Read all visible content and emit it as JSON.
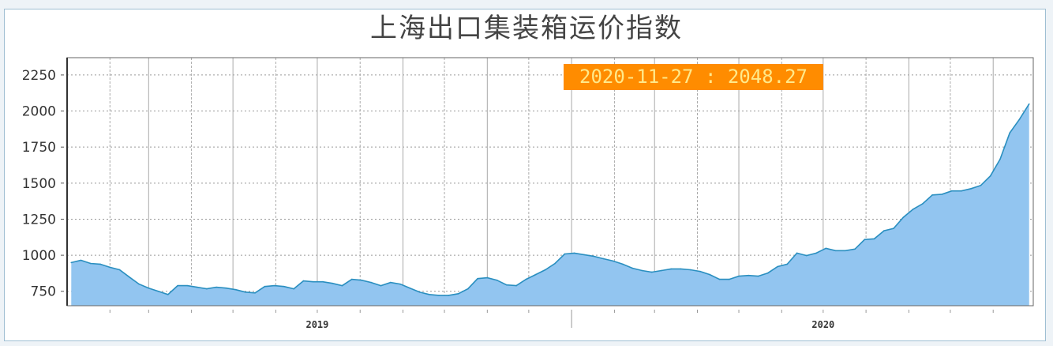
{
  "chart_data": {
    "type": "area",
    "title": "上海出口集装箱运价指数",
    "xlabel": "",
    "ylabel": "",
    "ylim": [
      650,
      2370
    ],
    "xlim": [
      "2019-01-01",
      "2020-11-30"
    ],
    "yticks": [
      750,
      1000,
      1250,
      1500,
      1750,
      2000,
      2250
    ],
    "xtick_labels": [
      {
        "label": "2019",
        "at": "2019-07-01"
      },
      {
        "label": "2020",
        "at": "2020-07-01"
      }
    ],
    "grid": true,
    "fill_color": "#92c5f0",
    "line_color": "#2a8fc0",
    "annotation": {
      "text": "2020-11-27 : 2048.27",
      "background": "#ff8c00",
      "color": "#ffe98a"
    },
    "x": [
      "2019-01-04",
      "2019-01-11",
      "2019-01-18",
      "2019-01-25",
      "2019-02-01",
      "2019-02-08",
      "2019-02-15",
      "2019-02-22",
      "2019-03-01",
      "2019-03-08",
      "2019-03-15",
      "2019-03-22",
      "2019-03-29",
      "2019-04-05",
      "2019-04-12",
      "2019-04-19",
      "2019-04-26",
      "2019-05-03",
      "2019-05-10",
      "2019-05-17",
      "2019-05-24",
      "2019-05-31",
      "2019-06-07",
      "2019-06-14",
      "2019-06-21",
      "2019-06-28",
      "2019-07-05",
      "2019-07-12",
      "2019-07-19",
      "2019-07-26",
      "2019-08-02",
      "2019-08-09",
      "2019-08-16",
      "2019-08-23",
      "2019-08-30",
      "2019-09-06",
      "2019-09-13",
      "2019-09-20",
      "2019-09-27",
      "2019-10-04",
      "2019-10-11",
      "2019-10-18",
      "2019-10-25",
      "2019-11-01",
      "2019-11-08",
      "2019-11-15",
      "2019-11-22",
      "2019-11-29",
      "2019-12-06",
      "2019-12-13",
      "2019-12-20",
      "2019-12-27",
      "2020-01-03",
      "2020-01-10",
      "2020-01-17",
      "2020-01-24",
      "2020-01-31",
      "2020-02-07",
      "2020-02-14",
      "2020-02-21",
      "2020-02-28",
      "2020-03-06",
      "2020-03-13",
      "2020-03-20",
      "2020-03-27",
      "2020-04-03",
      "2020-04-10",
      "2020-04-17",
      "2020-04-24",
      "2020-05-01",
      "2020-05-08",
      "2020-05-15",
      "2020-05-22",
      "2020-05-29",
      "2020-06-05",
      "2020-06-12",
      "2020-06-19",
      "2020-06-26",
      "2020-07-03",
      "2020-07-10",
      "2020-07-17",
      "2020-07-24",
      "2020-07-31",
      "2020-08-07",
      "2020-08-14",
      "2020-08-21",
      "2020-08-28",
      "2020-09-04",
      "2020-09-11",
      "2020-09-18",
      "2020-09-25",
      "2020-10-02",
      "2020-10-09",
      "2020-10-16",
      "2020-10-23",
      "2020-10-30",
      "2020-11-06",
      "2020-11-13",
      "2020-11-20",
      "2020-11-27"
    ],
    "values": [
      949,
      965,
      943,
      938,
      916,
      899,
      849,
      800,
      772,
      750,
      728,
      789,
      789,
      778,
      767,
      778,
      772,
      761,
      744,
      739,
      783,
      789,
      783,
      767,
      822,
      816,
      816,
      805,
      789,
      833,
      827,
      811,
      789,
      811,
      800,
      772,
      744,
      728,
      722,
      722,
      733,
      767,
      838,
      844,
      827,
      794,
      789,
      833,
      866,
      899,
      943,
      1009,
      1015,
      1004,
      993,
      976,
      960,
      938,
      910,
      894,
      883,
      894,
      905,
      905,
      899,
      888,
      866,
      833,
      833,
      855,
      860,
      855,
      877,
      921,
      938,
      1015,
      998,
      1015,
      1048,
      1032,
      1032,
      1043,
      1109,
      1114,
      1170,
      1186,
      1263,
      1319,
      1357,
      1418,
      1423,
      1446,
      1446,
      1462,
      1484,
      1550,
      1666,
      1848,
      1942,
      2048.27
    ]
  }
}
